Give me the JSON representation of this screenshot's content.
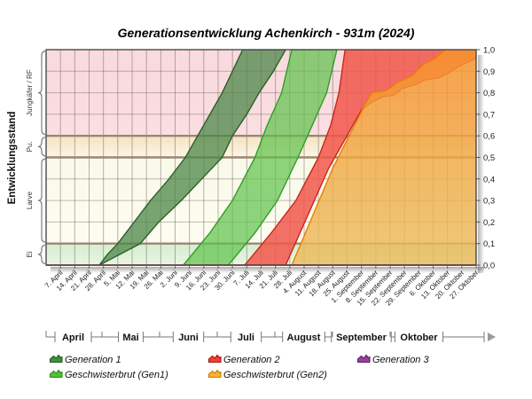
{
  "title": "Generationsentwicklung Achenkirch - 931m (2024)",
  "y_axis": {
    "label": "Entwicklungsstand",
    "tick_labels": [
      "0,0",
      "0,1",
      "0,2",
      "0,3",
      "0,4",
      "0,5",
      "0,6",
      "0,7",
      "0,8",
      "0,9",
      "1,0"
    ],
    "categories": [
      {
        "label": "Ei",
        "from": 0.0,
        "to": 0.1,
        "color": "#d6ecd0",
        "color2": "#e9f5e2"
      },
      {
        "label": "Larve",
        "from": 0.1,
        "to": 0.5,
        "color": "#fafaea",
        "color2": "#fcfcf1"
      },
      {
        "label": "Pu.",
        "from": 0.5,
        "to": 0.6,
        "color": "#f4e3c4",
        "color2": "#fdf5e6"
      },
      {
        "label": "Jungkäfer / RF",
        "from": 0.6,
        "to": 1.0,
        "color": "#f9dade",
        "color2": "#fadee2"
      }
    ]
  },
  "x_axis": {
    "date_labels": [
      "7. April",
      "14. April",
      "21. April",
      "28. April",
      "5. Mai",
      "12. Mai",
      "19. Mai",
      "26. Mai",
      "2. Juni",
      "9. Juni",
      "16. Juni",
      "23. Juni",
      "30. Juni",
      "7. Juli",
      "14. Juli",
      "21. Juli",
      "28. Juli",
      "4. August",
      "11. August",
      "18. August",
      "25. August",
      "1. September",
      "8. September",
      "15. September",
      "22. September",
      "29. September",
      "6. Oktober",
      "13. Oktober",
      "20. Oktober",
      "27. Oktober"
    ],
    "months": [
      "April",
      "Mai",
      "Juni",
      "Juli",
      "August",
      "September",
      "Oktober"
    ]
  },
  "legend": {
    "items": [
      {
        "label": "Generation 1",
        "fill": "#3f8f3f",
        "stroke": "#1e5c1e",
        "row": 0,
        "col": 0
      },
      {
        "label": "Generation 2",
        "fill": "#ee4135",
        "stroke": "#a81208",
        "row": 0,
        "col": 1
      },
      {
        "label": "Generation 3",
        "fill": "#9c3fa0",
        "stroke": "#5a2060",
        "row": 0,
        "col": 2
      },
      {
        "label": "Geschwisterbrut (Gen1)",
        "fill": "#52c136",
        "stroke": "#278f14",
        "row": 1,
        "col": 0
      },
      {
        "label": "Geschwisterbrut (Gen2)",
        "fill": "#f9b233",
        "stroke": "#d07800",
        "row": 1,
        "col": 1
      }
    ]
  },
  "chart_data": {
    "type": "area",
    "x_unit": "days since 31. März 2024 (weekly gridlines, 7. April – 27. Oktober)",
    "x_range": [
      0,
      210
    ],
    "y_range": [
      0,
      1
    ],
    "grid": true,
    "separators": [
      0.1,
      0.5,
      0.6
    ],
    "baseline_color": "#c23527",
    "series": [
      {
        "name": "Generation 1",
        "fill": "#4c8748",
        "opacity": 0.75,
        "stroke": "#2d5f2b",
        "upper": [
          [
            26,
            0
          ],
          [
            30,
            0.05
          ],
          [
            35,
            0.1
          ],
          [
            43,
            0.2
          ],
          [
            51,
            0.3
          ],
          [
            60,
            0.4
          ],
          [
            68,
            0.5
          ],
          [
            74,
            0.6
          ],
          [
            80,
            0.7
          ],
          [
            86,
            0.8
          ],
          [
            91,
            0.9
          ],
          [
            96,
            1
          ]
        ],
        "lower": [
          [
            26,
            0
          ],
          [
            36,
            0.05
          ],
          [
            46,
            0.1
          ],
          [
            55,
            0.2
          ],
          [
            66,
            0.3
          ],
          [
            76,
            0.4
          ],
          [
            86,
            0.5
          ],
          [
            91,
            0.6
          ],
          [
            98,
            0.7
          ],
          [
            104,
            0.8
          ],
          [
            111,
            0.9
          ],
          [
            117,
            1
          ]
        ]
      },
      {
        "name": "Geschwisterbrut (Gen1)",
        "fill": "#5ec24a",
        "opacity": 0.7,
        "stroke": "#2f9e28",
        "upper": [
          [
            67,
            0
          ],
          [
            80,
            0.15
          ],
          [
            91,
            0.3
          ],
          [
            102,
            0.5
          ],
          [
            108,
            0.65
          ],
          [
            115,
            0.8
          ],
          [
            120,
            1
          ]
        ],
        "lower": [
          [
            89,
            0
          ],
          [
            102,
            0.15
          ],
          [
            113,
            0.3
          ],
          [
            123,
            0.5
          ],
          [
            130,
            0.65
          ],
          [
            137,
            0.8
          ],
          [
            142,
            1
          ]
        ]
      },
      {
        "name": "Generation 2",
        "fill": "#f1574b",
        "opacity": 0.85,
        "stroke": "#c8281c",
        "upper": [
          [
            97,
            0
          ],
          [
            110,
            0.15
          ],
          [
            122,
            0.3
          ],
          [
            133,
            0.5
          ],
          [
            139,
            0.65
          ],
          [
            143,
            0.8
          ],
          [
            146,
            1
          ],
          [
            210,
            1
          ]
        ],
        "lower": [
          [
            117,
            0
          ],
          [
            138,
            0.45
          ],
          [
            154,
            0.72
          ],
          [
            158,
            0.75
          ],
          [
            164,
            0.78
          ],
          [
            170,
            0.79
          ],
          [
            174,
            0.82
          ],
          [
            181,
            0.84
          ],
          [
            185,
            0.86
          ],
          [
            192,
            0.87
          ],
          [
            196,
            0.89
          ],
          [
            203,
            0.93
          ],
          [
            210,
            0.96
          ]
        ]
      },
      {
        "name": "Geschwisterbrut (Gen2)",
        "fill": "#f7942a",
        "fill2": "#eabd5e",
        "opacity": 0.82,
        "stroke": "#ee7d00",
        "upper": [
          [
            120,
            0
          ],
          [
            140,
            0.45
          ],
          [
            156,
            0.75
          ],
          [
            159,
            0.8
          ],
          [
            166,
            0.81
          ],
          [
            172,
            0.85
          ],
          [
            179,
            0.88
          ],
          [
            184,
            0.93
          ],
          [
            190,
            0.96
          ],
          [
            195,
            1
          ],
          [
            210,
            1
          ]
        ],
        "lower": [
          [
            120,
            0
          ],
          [
            210,
            0
          ]
        ]
      }
    ]
  }
}
